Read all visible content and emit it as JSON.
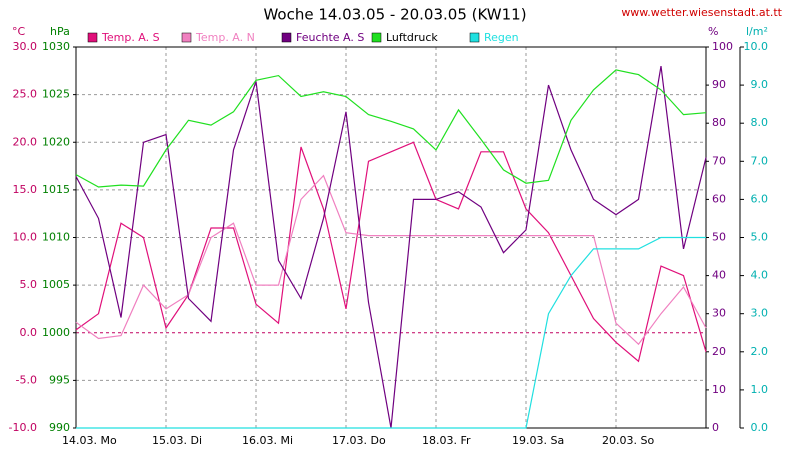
{
  "chart_data": {
    "type": "line",
    "title": "Woche 14.03.05 - 20.03.05 (KW11)",
    "source": "www.wetter.wiesenstadt.at.tt",
    "y_label": "°C",
    "y2_label": "hPa",
    "y3_label": "%",
    "y4_label": "l/m²",
    "categories": [
      "14.03.  Mo",
      "15.03.  Di",
      "16.03.  Mi",
      "17.03.  Do",
      "18.03.  Fr",
      "19.03.  Sa",
      "20.03.  So"
    ],
    "xlim": [
      0,
      7
    ],
    "x": [
      0,
      0.25,
      0.5,
      0.75,
      1,
      1.25,
      1.5,
      1.75,
      2,
      2.25,
      2.5,
      2.75,
      3,
      3.25,
      3.5,
      3.75,
      4,
      4.25,
      4.5,
      4.75,
      5,
      5.25,
      5.5,
      5.75,
      6,
      6.25,
      6.5,
      6.75,
      7
    ],
    "ylim": [
      -10,
      30
    ],
    "yticks": [
      {
        "value": -10,
        "label": "-10.0"
      },
      {
        "value": -5,
        "label": "-5.0"
      },
      {
        "value": 0,
        "label": "0.0"
      },
      {
        "value": 5,
        "label": "5.0"
      },
      {
        "value": 10,
        "label": "10.0"
      },
      {
        "value": 15,
        "label": "15.0"
      },
      {
        "value": 20,
        "label": "20.0"
      },
      {
        "value": 25,
        "label": "25.0"
      },
      {
        "value": 30,
        "label": "30.0"
      }
    ],
    "y2lim": [
      990,
      1030
    ],
    "y2ticks": [
      990,
      995,
      1000,
      1005,
      1010,
      1015,
      1020,
      1025,
      1030
    ],
    "y3lim": [
      0,
      100
    ],
    "y3ticks": [
      0,
      10,
      20,
      30,
      40,
      50,
      60,
      70,
      80,
      90,
      100
    ],
    "y4lim": [
      0,
      10
    ],
    "y4ticks": [
      {
        "value": 0,
        "label": "0.0"
      },
      {
        "value": 1,
        "label": "1.0"
      },
      {
        "value": 2,
        "label": "2.0"
      },
      {
        "value": 3,
        "label": "3.0"
      },
      {
        "value": 4,
        "label": "4.0"
      },
      {
        "value": 5,
        "label": "5.0"
      },
      {
        "value": 6,
        "label": "6.0"
      },
      {
        "value": 7,
        "label": "7.0"
      },
      {
        "value": 8,
        "label": "8.0"
      },
      {
        "value": 9,
        "label": "9.0"
      },
      {
        "value": 10,
        "label": "10.0"
      }
    ],
    "grid": true,
    "series": [
      {
        "name": "Temp. A. S",
        "color": "#e0107a",
        "axis": "y",
        "values": [
          0.3,
          2,
          11.5,
          10,
          0.5,
          4,
          11,
          11,
          3,
          1,
          19.5,
          13,
          2.5,
          18,
          19,
          20,
          14,
          13,
          19,
          19,
          13,
          10.5,
          6,
          1.5,
          -1,
          -3,
          7,
          6,
          -2
        ]
      },
      {
        "name": "Temp. A. N",
        "color": "#f080c0",
        "axis": "y",
        "values": [
          1.1,
          -0.6,
          -0.3,
          5,
          2.5,
          4,
          10,
          11.5,
          5,
          5,
          14,
          16.5,
          10.5,
          10.2,
          10.2,
          10.2,
          10.2,
          10.2,
          10.2,
          10.2,
          10.2,
          10.2,
          10.2,
          10.2,
          1,
          -1.2,
          2,
          4.8,
          0.5
        ]
      },
      {
        "name": "Feuchte A. S",
        "color": "#700080",
        "axis": "y3",
        "values": [
          66,
          55,
          29,
          75,
          77,
          34,
          28,
          73,
          91,
          44,
          34,
          55,
          83,
          33,
          0,
          60,
          60,
          62,
          58,
          46,
          52,
          90,
          73,
          60,
          56,
          60,
          95,
          47,
          71
        ]
      },
      {
        "name": "Luftdruck",
        "color": "#20e020",
        "axis": "y2",
        "values": [
          1016.6,
          1015.3,
          1015.5,
          1015.4,
          1019.2,
          1022.3,
          1021.8,
          1023.2,
          1026.5,
          1027.0,
          1024.8,
          1025.3,
          1024.8,
          1022.9,
          1022.2,
          1021.4,
          1019.2,
          1023.4,
          1020.3,
          1017.1,
          1015.7,
          1016.0,
          1022.3,
          1025.5,
          1027.6,
          1027.1,
          1025.5,
          1022.9,
          1023.1
        ]
      },
      {
        "name": "Regen",
        "color": "#20e0e0",
        "axis": "y4",
        "values": [
          0,
          0,
          0,
          0,
          0,
          0,
          0,
          0,
          0,
          0,
          0,
          0,
          0,
          0,
          0,
          0,
          0,
          0,
          0,
          0,
          0,
          3.0,
          4.0,
          4.7,
          4.7,
          4.7,
          5.0,
          5.0,
          5.0
        ]
      }
    ]
  }
}
